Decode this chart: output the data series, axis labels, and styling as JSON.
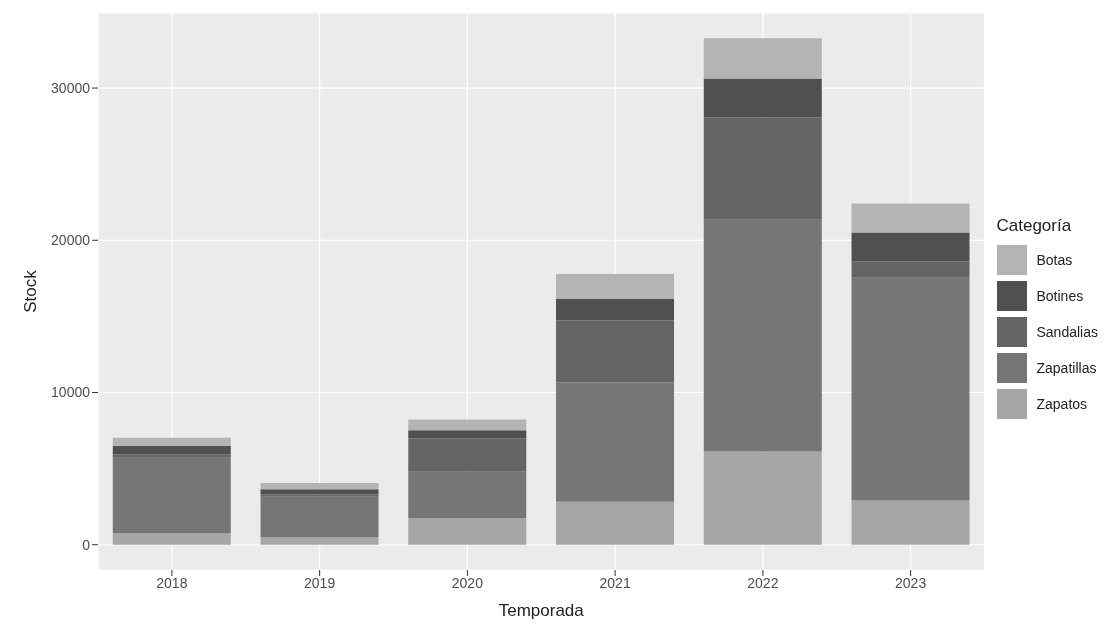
{
  "chart_data": {
    "type": "bar",
    "stacked": true,
    "xlabel": "Temporada",
    "ylabel": "Stock",
    "legend_title": "Categoría",
    "legend": "right",
    "grid": true,
    "categories": [
      "2018",
      "2019",
      "2020",
      "2021",
      "2022",
      "2023"
    ],
    "series": [
      {
        "name": "Zapatos",
        "color": "#a6a6a6",
        "values": [
          770,
          510,
          1760,
          2830,
          6120,
          2910
        ]
      },
      {
        "name": "Zapatillas",
        "color": "#767676",
        "values": [
          4950,
          2640,
          3040,
          7830,
          15230,
          14630
        ]
      },
      {
        "name": "Sandalias",
        "color": "#646464",
        "values": [
          200,
          150,
          2180,
          4070,
          6720,
          1090
        ]
      },
      {
        "name": "Botines",
        "color": "#505050",
        "values": [
          590,
          340,
          540,
          1410,
          2550,
          1880
        ]
      },
      {
        "name": "Botas",
        "color": "#b4b4b4",
        "values": [
          510,
          410,
          700,
          1650,
          2650,
          1910
        ]
      }
    ],
    "ylim": [
      -1660,
      34930
    ],
    "yticks": [
      0,
      10000,
      20000,
      30000
    ]
  }
}
